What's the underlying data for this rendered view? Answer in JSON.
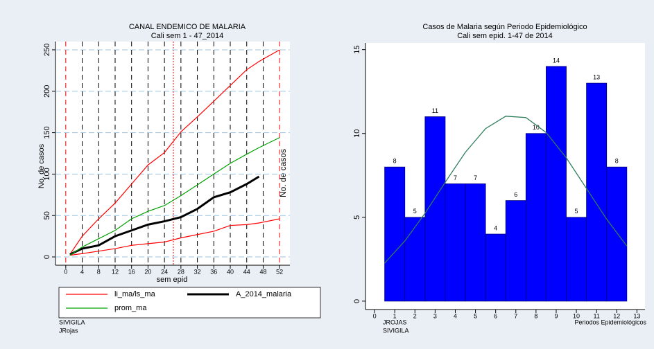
{
  "chart_data": [
    {
      "type": "line",
      "title": "CANAL ENDEMICO DE MALARIA",
      "subtitle": "Cali sem 1 - 47_2014",
      "xlabel": "sem epid",
      "ylabel": "No. de casos",
      "x": [
        1,
        4,
        8,
        12,
        16,
        20,
        24,
        28,
        32,
        36,
        40,
        44,
        47,
        52
      ],
      "xlim": [
        -2.5,
        54.5
      ],
      "xticks": [
        0,
        4,
        8,
        12,
        16,
        20,
        24,
        28,
        32,
        36,
        40,
        44,
        48,
        52
      ],
      "ylim": [
        -10,
        260
      ],
      "yticks": [
        0,
        50,
        100,
        150,
        200,
        250
      ],
      "grid": true,
      "series": [
        {
          "name": "li_ma/ls_ma",
          "color": "#ff0000",
          "values": [
            3,
            25,
            46,
            65,
            88,
            111,
            126,
            151,
            169,
            188,
            207,
            226,
            236,
            250
          ],
          "lower": [
            2,
            4,
            7,
            10,
            14,
            16,
            18,
            23,
            27,
            31,
            38,
            39,
            41,
            46
          ]
        },
        {
          "name": "A_2014_malaria",
          "color": "#000000",
          "values": [
            3,
            10,
            14,
            25,
            32,
            39,
            43,
            48,
            58,
            72,
            78,
            88,
            97,
            null
          ]
        },
        {
          "name": "prom_ma",
          "color": "#00a000",
          "values": [
            2,
            12,
            22,
            32,
            46,
            55,
            62,
            74,
            87,
            100,
            113,
            124,
            132,
            144
          ]
        }
      ],
      "footer": [
        "SIVIGILA",
        "JRojas"
      ]
    },
    {
      "type": "histogram",
      "title": "Casos de Malaria según Periodo Epidemiológico",
      "subtitle": "Cali sem epid. 1-47 de 2014",
      "xlabel": "Periodos Epidemiológicos",
      "bins": [
        0.5,
        1.5,
        2.5,
        3.5,
        4.5,
        5.5,
        6.5,
        7.5,
        8.5,
        9.5,
        10.5,
        11.5,
        12.5
      ],
      "values": [
        8,
        5,
        11,
        7,
        7,
        4,
        6,
        10,
        14,
        5,
        13,
        8
      ],
      "color": "#0000ff",
      "curve": {
        "x": [
          0.5,
          1.5,
          2.5,
          3.5,
          4.5,
          5.5,
          6.5,
          7.5,
          8.5,
          9.5,
          10.5,
          11.5,
          12.5
        ],
        "values": [
          2.27,
          3.59,
          5.24,
          7.09,
          8.88,
          10.29,
          11.03,
          10.95,
          10.06,
          8.55,
          6.72,
          4.89,
          3.29
        ],
        "color": "#2e7d5b"
      },
      "xlim": [
        -0.45,
        13.4
      ],
      "xticks": [
        0,
        1,
        2,
        3,
        4,
        5,
        6,
        7,
        8,
        9,
        10,
        11,
        12,
        13
      ],
      "ylim": [
        -0.5,
        15.4
      ],
      "yticks": [
        0,
        5,
        10,
        15
      ],
      "footer": [
        "JROJAS",
        "SIVIGILA"
      ]
    }
  ]
}
